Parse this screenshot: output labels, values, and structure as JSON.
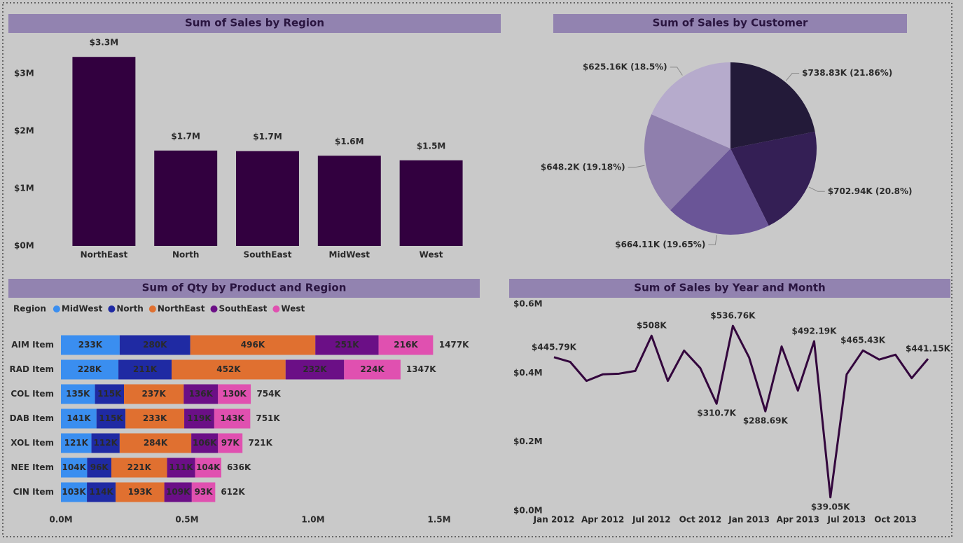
{
  "chart_data": [
    {
      "type": "bar",
      "title": "Sum of Sales by Region",
      "categories": [
        "NorthEast",
        "North",
        "SouthEast",
        "MidWest",
        "West"
      ],
      "values": [
        3290000,
        1660000,
        1650000,
        1570000,
        1490000
      ],
      "value_labels": [
        "$3.3M",
        "$1.7M",
        "$1.7M",
        "$1.6M",
        "$1.5M"
      ],
      "color": "#32003f",
      "ylim": [
        0,
        3500000
      ],
      "yticks": [
        {
          "value": 0,
          "label": "$0M"
        },
        {
          "value": 1000000,
          "label": "$1M"
        },
        {
          "value": 2000000,
          "label": "$2M"
        },
        {
          "value": 3000000,
          "label": "$3M"
        }
      ],
      "grid": false
    },
    {
      "type": "pie",
      "title": "Sum of Sales by Customer",
      "values": [
        738.83,
        702.94,
        664.11,
        648.2,
        625.16
      ],
      "value_labels": [
        "$738.83K (21.86%)",
        "$702.94K (20.8%)",
        "$664.11K (19.65%)",
        "$648.2K (19.18%)",
        "$625.16K (18.5%)"
      ],
      "colors": [
        "#231a39",
        "#341f55",
        "#6a5597",
        "#8f7fad",
        "#b6abcc"
      ]
    },
    {
      "type": "bar",
      "orientation": "horizontal",
      "stacked": true,
      "title": "Sum of Qty by Product and Region",
      "legend_title": "Region",
      "categories": [
        "AIM Item",
        "RAD Item",
        "COL Item",
        "DAB Item",
        "XOL Item",
        "NEE Item",
        "CIN Item"
      ],
      "series": [
        {
          "name": "MidWest",
          "color": "#3a8ef0",
          "values": [
            233000,
            228000,
            135000,
            141000,
            121000,
            104000,
            103000
          ],
          "value_labels": [
            "233K",
            "228K",
            "135K",
            "141K",
            "121K",
            "104K",
            "103K"
          ]
        },
        {
          "name": "North",
          "color": "#1f2aa3",
          "values": [
            280000,
            211000,
            115000,
            115000,
            112000,
            96000,
            114000
          ],
          "value_labels": [
            "280K",
            "211K",
            "115K",
            "115K",
            "112K",
            "96K",
            "114K"
          ]
        },
        {
          "name": "NorthEast",
          "color": "#e07030",
          "values": [
            496000,
            452000,
            237000,
            233000,
            284000,
            221000,
            193000
          ],
          "value_labels": [
            "496K",
            "452K",
            "237K",
            "233K",
            "284K",
            "221K",
            "193K"
          ]
        },
        {
          "name": "SouthEast",
          "color": "#6b0f86",
          "values": [
            251000,
            232000,
            136000,
            119000,
            106000,
            111000,
            109000
          ],
          "value_labels": [
            "251K",
            "232K",
            "136K",
            "119K",
            "106K",
            "111K",
            "109K"
          ]
        },
        {
          "name": "West",
          "color": "#e050b0",
          "values": [
            216000,
            224000,
            130000,
            143000,
            97000,
            104000,
            93000
          ],
          "value_labels": [
            "216K",
            "224K",
            "130K",
            "143K",
            "97K",
            "104K",
            "93K"
          ]
        }
      ],
      "totals": [
        1477000,
        1347000,
        754000,
        751000,
        721000,
        636000,
        612000
      ],
      "total_labels": [
        "1477K",
        "1347K",
        "754K",
        "751K",
        "721K",
        "636K",
        "612K"
      ],
      "xlim": [
        0,
        1500000
      ],
      "xticks": [
        {
          "value": 0,
          "label": "0.0M"
        },
        {
          "value": 500000,
          "label": "0.5M"
        },
        {
          "value": 1000000,
          "label": "1.0M"
        },
        {
          "value": 1500000,
          "label": "1.5M"
        }
      ]
    },
    {
      "type": "line",
      "title": "Sum of Sales by Year and Month",
      "categories": [
        "Jan 2012",
        null,
        null,
        "Apr 2012",
        null,
        null,
        "Jul 2012",
        null,
        null,
        "Oct 2012",
        null,
        null,
        "Jan 2013",
        null,
        null,
        "Apr 2013",
        null,
        null,
        "Jul 2013",
        null,
        null,
        "Oct 2013",
        null,
        null
      ],
      "values": [
        445790,
        432000,
        377000,
        396000,
        398000,
        406000,
        508000,
        377000,
        465000,
        414000,
        310700,
        536760,
        445000,
        288690,
        477000,
        349000,
        492190,
        39050,
        396000,
        465430,
        439000,
        453000,
        385000,
        441150
      ],
      "value_labels": [
        "$445.79K",
        null,
        null,
        null,
        null,
        null,
        "$508K",
        null,
        null,
        null,
        "$310.7K",
        "$536.76K",
        null,
        "$288.69K",
        null,
        null,
        "$492.19K",
        "$39.05K",
        null,
        "$465.43K",
        null,
        null,
        null,
        "$441.15K"
      ],
      "color": "#33063d",
      "ylim": [
        0,
        600000
      ],
      "yticks": [
        {
          "value": 0,
          "label": "$0.0M"
        },
        {
          "value": 200000,
          "label": "$0.2M"
        },
        {
          "value": 400000,
          "label": "$0.4M"
        },
        {
          "value": 600000,
          "label": "$0.6M"
        }
      ]
    }
  ]
}
